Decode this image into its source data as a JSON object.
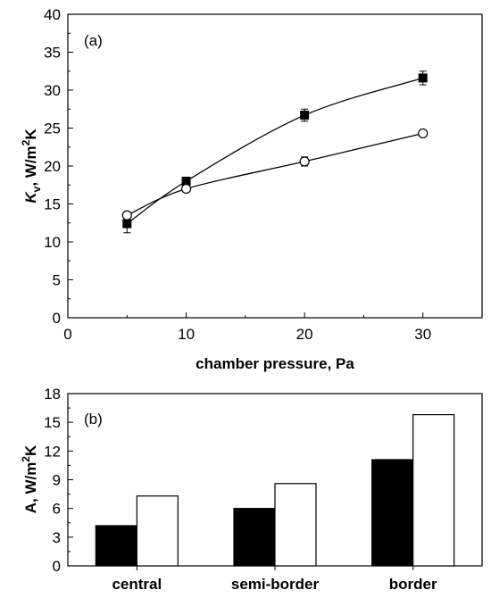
{
  "chart_data": [
    {
      "type": "scatter",
      "panel_label": "(a)",
      "xlabel": "chamber pressure, Pa",
      "ylabel_main": "K",
      "ylabel_sub": "v",
      "ylabel_rest": ", W/m",
      "ylabel_sup": "2",
      "ylabel_end": "K",
      "xlim": [
        0,
        35
      ],
      "ylim": [
        0,
        40
      ],
      "xticks": [
        0,
        10,
        20,
        30
      ],
      "xtick_labels": [
        "0",
        "10",
        "20",
        "30"
      ],
      "yticks": [
        0,
        5,
        10,
        15,
        20,
        25,
        30,
        35,
        40
      ],
      "ytick_labels": [
        "0",
        "5",
        "10",
        "15",
        "20",
        "25",
        "30",
        "35",
        "40"
      ],
      "grid": false,
      "legend": "none",
      "series": [
        {
          "marker": "filled-square",
          "fit_line": true,
          "x": [
            5,
            10,
            20,
            30
          ],
          "y": [
            12.4,
            18.0,
            26.7,
            31.6
          ],
          "err": [
            1.2,
            0.5,
            0.8,
            0.9
          ]
        },
        {
          "marker": "open-circle",
          "fit_line": true,
          "x": [
            5,
            10,
            20,
            30
          ],
          "y": [
            13.5,
            17.0,
            20.6,
            24.3
          ],
          "err": [
            0.4,
            0.4,
            0.6,
            0.4
          ]
        }
      ]
    },
    {
      "type": "bar",
      "panel_label": "(b)",
      "categories": [
        "central",
        "semi-border",
        "border"
      ],
      "ylabel_main": "A, W/m",
      "ylabel_sup": "2",
      "ylabel_end": "K",
      "ylim": [
        0,
        18
      ],
      "yticks": [
        0,
        3,
        6,
        9,
        12,
        15,
        18
      ],
      "ytick_labels": [
        "0",
        "3",
        "6",
        "9",
        "12",
        "15",
        "18"
      ],
      "grid": false,
      "legend": "none",
      "series": [
        {
          "fill": "#000000",
          "values": [
            4.2,
            6.0,
            11.1
          ]
        },
        {
          "fill": "#ffffff",
          "values": [
            7.3,
            8.6,
            15.8
          ]
        }
      ]
    }
  ]
}
